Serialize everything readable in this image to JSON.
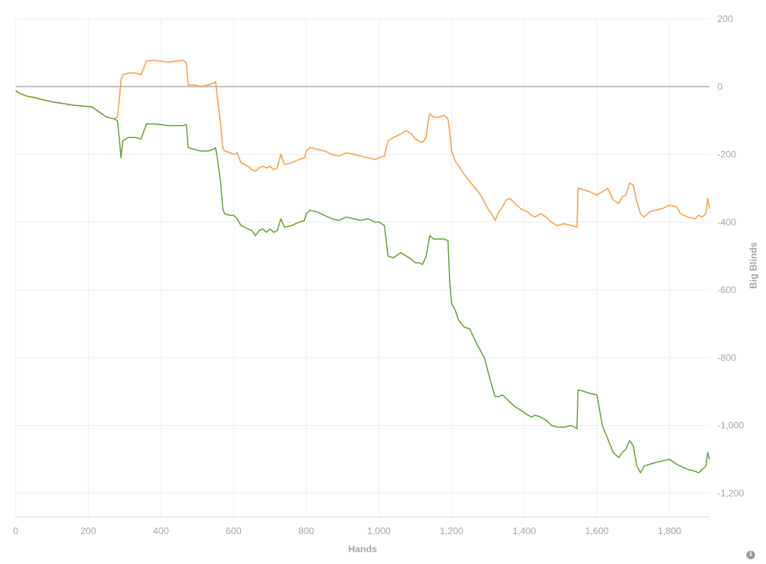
{
  "chart_data": {
    "type": "line",
    "xlabel": "Hands",
    "ylabel": "Big Blinds",
    "xlim": [
      0,
      1910
    ],
    "ylim": [
      -1270,
      200
    ],
    "x_ticks": [
      0,
      200,
      400,
      600,
      800,
      1000,
      1200,
      1400,
      1600,
      1800
    ],
    "y_ticks": [
      200,
      0,
      -200,
      -400,
      -600,
      -800,
      -1000,
      -1200
    ],
    "grid": true,
    "zero_line": true,
    "legend": "none",
    "series": [
      {
        "color": "#f5a04f",
        "points": [
          [
            0,
            -12
          ],
          [
            10,
            -20
          ],
          [
            30,
            -28
          ],
          [
            50,
            -32
          ],
          [
            80,
            -40
          ],
          [
            100,
            -45
          ],
          [
            130,
            -50
          ],
          [
            160,
            -55
          ],
          [
            190,
            -58
          ],
          [
            210,
            -60
          ],
          [
            230,
            -75
          ],
          [
            250,
            -90
          ],
          [
            270,
            -95
          ],
          [
            280,
            -90
          ],
          [
            285,
            -40
          ],
          [
            290,
            20
          ],
          [
            295,
            35
          ],
          [
            310,
            40
          ],
          [
            330,
            40
          ],
          [
            345,
            35
          ],
          [
            360,
            75
          ],
          [
            380,
            78
          ],
          [
            400,
            75
          ],
          [
            420,
            72
          ],
          [
            440,
            75
          ],
          [
            460,
            78
          ],
          [
            470,
            70
          ],
          [
            475,
            5
          ],
          [
            490,
            5
          ],
          [
            510,
            0
          ],
          [
            530,
            5
          ],
          [
            545,
            10
          ],
          [
            550,
            15
          ],
          [
            555,
            -30
          ],
          [
            565,
            -120
          ],
          [
            570,
            -180
          ],
          [
            575,
            -190
          ],
          [
            590,
            -195
          ],
          [
            600,
            -200
          ],
          [
            610,
            -195
          ],
          [
            620,
            -225
          ],
          [
            640,
            -235
          ],
          [
            650,
            -245
          ],
          [
            660,
            -250
          ],
          [
            670,
            -240
          ],
          [
            680,
            -235
          ],
          [
            690,
            -240
          ],
          [
            700,
            -235
          ],
          [
            710,
            -245
          ],
          [
            720,
            -240
          ],
          [
            730,
            -200
          ],
          [
            740,
            -230
          ],
          [
            760,
            -225
          ],
          [
            780,
            -215
          ],
          [
            795,
            -210
          ],
          [
            800,
            -190
          ],
          [
            810,
            -180
          ],
          [
            830,
            -185
          ],
          [
            850,
            -190
          ],
          [
            870,
            -200
          ],
          [
            890,
            -205
          ],
          [
            910,
            -195
          ],
          [
            930,
            -200
          ],
          [
            950,
            -205
          ],
          [
            970,
            -210
          ],
          [
            990,
            -215
          ],
          [
            1000,
            -210
          ],
          [
            1015,
            -205
          ],
          [
            1025,
            -160
          ],
          [
            1040,
            -150
          ],
          [
            1060,
            -140
          ],
          [
            1075,
            -130
          ],
          [
            1090,
            -140
          ],
          [
            1100,
            -155
          ],
          [
            1110,
            -160
          ],
          [
            1120,
            -165
          ],
          [
            1130,
            -150
          ],
          [
            1135,
            -105
          ],
          [
            1140,
            -80
          ],
          [
            1150,
            -90
          ],
          [
            1165,
            -90
          ],
          [
            1180,
            -85
          ],
          [
            1190,
            -95
          ],
          [
            1195,
            -135
          ],
          [
            1200,
            -190
          ],
          [
            1210,
            -220
          ],
          [
            1220,
            -235
          ],
          [
            1235,
            -260
          ],
          [
            1250,
            -280
          ],
          [
            1265,
            -300
          ],
          [
            1280,
            -320
          ],
          [
            1290,
            -340
          ],
          [
            1300,
            -360
          ],
          [
            1310,
            -375
          ],
          [
            1320,
            -395
          ],
          [
            1330,
            -370
          ],
          [
            1340,
            -355
          ],
          [
            1350,
            -335
          ],
          [
            1360,
            -330
          ],
          [
            1375,
            -345
          ],
          [
            1390,
            -360
          ],
          [
            1410,
            -370
          ],
          [
            1420,
            -380
          ],
          [
            1430,
            -385
          ],
          [
            1445,
            -375
          ],
          [
            1460,
            -385
          ],
          [
            1475,
            -400
          ],
          [
            1490,
            -410
          ],
          [
            1510,
            -405
          ],
          [
            1530,
            -410
          ],
          [
            1545,
            -415
          ],
          [
            1548,
            -300
          ],
          [
            1565,
            -305
          ],
          [
            1580,
            -310
          ],
          [
            1600,
            -320
          ],
          [
            1615,
            -310
          ],
          [
            1630,
            -300
          ],
          [
            1645,
            -335
          ],
          [
            1660,
            -345
          ],
          [
            1670,
            -325
          ],
          [
            1680,
            -320
          ],
          [
            1690,
            -285
          ],
          [
            1700,
            -290
          ],
          [
            1710,
            -340
          ],
          [
            1720,
            -375
          ],
          [
            1730,
            -385
          ],
          [
            1745,
            -370
          ],
          [
            1760,
            -365
          ],
          [
            1780,
            -360
          ],
          [
            1800,
            -350
          ],
          [
            1820,
            -355
          ],
          [
            1830,
            -375
          ],
          [
            1850,
            -385
          ],
          [
            1870,
            -390
          ],
          [
            1880,
            -380
          ],
          [
            1890,
            -385
          ],
          [
            1900,
            -375
          ],
          [
            1905,
            -330
          ],
          [
            1910,
            -360
          ]
        ]
      },
      {
        "color": "#6aa33a",
        "points": [
          [
            0,
            -12
          ],
          [
            10,
            -20
          ],
          [
            30,
            -28
          ],
          [
            50,
            -32
          ],
          [
            80,
            -40
          ],
          [
            100,
            -45
          ],
          [
            130,
            -50
          ],
          [
            160,
            -55
          ],
          [
            190,
            -58
          ],
          [
            210,
            -60
          ],
          [
            230,
            -75
          ],
          [
            250,
            -90
          ],
          [
            270,
            -95
          ],
          [
            280,
            -100
          ],
          [
            285,
            -150
          ],
          [
            290,
            -210
          ],
          [
            295,
            -160
          ],
          [
            310,
            -150
          ],
          [
            330,
            -150
          ],
          [
            345,
            -155
          ],
          [
            360,
            -110
          ],
          [
            380,
            -110
          ],
          [
            400,
            -112
          ],
          [
            420,
            -115
          ],
          [
            440,
            -115
          ],
          [
            460,
            -115
          ],
          [
            470,
            -112
          ],
          [
            475,
            -180
          ],
          [
            490,
            -185
          ],
          [
            510,
            -190
          ],
          [
            530,
            -190
          ],
          [
            545,
            -185
          ],
          [
            550,
            -180
          ],
          [
            555,
            -210
          ],
          [
            565,
            -290
          ],
          [
            570,
            -360
          ],
          [
            575,
            -375
          ],
          [
            590,
            -380
          ],
          [
            600,
            -380
          ],
          [
            610,
            -390
          ],
          [
            620,
            -410
          ],
          [
            640,
            -420
          ],
          [
            650,
            -425
          ],
          [
            660,
            -440
          ],
          [
            670,
            -425
          ],
          [
            680,
            -420
          ],
          [
            690,
            -430
          ],
          [
            700,
            -420
          ],
          [
            710,
            -430
          ],
          [
            720,
            -425
          ],
          [
            730,
            -390
          ],
          [
            740,
            -415
          ],
          [
            760,
            -410
          ],
          [
            780,
            -400
          ],
          [
            795,
            -395
          ],
          [
            800,
            -375
          ],
          [
            810,
            -365
          ],
          [
            830,
            -370
          ],
          [
            850,
            -380
          ],
          [
            870,
            -390
          ],
          [
            890,
            -395
          ],
          [
            910,
            -385
          ],
          [
            930,
            -390
          ],
          [
            950,
            -395
          ],
          [
            970,
            -390
          ],
          [
            990,
            -400
          ],
          [
            1000,
            -400
          ],
          [
            1015,
            -410
          ],
          [
            1025,
            -500
          ],
          [
            1040,
            -505
          ],
          [
            1060,
            -490
          ],
          [
            1075,
            -500
          ],
          [
            1090,
            -510
          ],
          [
            1100,
            -520
          ],
          [
            1110,
            -520
          ],
          [
            1120,
            -525
          ],
          [
            1130,
            -500
          ],
          [
            1135,
            -470
          ],
          [
            1140,
            -440
          ],
          [
            1150,
            -450
          ],
          [
            1165,
            -450
          ],
          [
            1180,
            -450
          ],
          [
            1190,
            -455
          ],
          [
            1195,
            -580
          ],
          [
            1200,
            -640
          ],
          [
            1210,
            -660
          ],
          [
            1220,
            -690
          ],
          [
            1235,
            -710
          ],
          [
            1250,
            -715
          ],
          [
            1265,
            -750
          ],
          [
            1280,
            -780
          ],
          [
            1290,
            -800
          ],
          [
            1300,
            -840
          ],
          [
            1310,
            -880
          ],
          [
            1320,
            -915
          ],
          [
            1330,
            -915
          ],
          [
            1340,
            -910
          ],
          [
            1350,
            -920
          ],
          [
            1360,
            -930
          ],
          [
            1375,
            -945
          ],
          [
            1390,
            -955
          ],
          [
            1410,
            -970
          ],
          [
            1420,
            -975
          ],
          [
            1430,
            -970
          ],
          [
            1445,
            -975
          ],
          [
            1460,
            -985
          ],
          [
            1475,
            -1000
          ],
          [
            1490,
            -1005
          ],
          [
            1510,
            -1005
          ],
          [
            1530,
            -1000
          ],
          [
            1545,
            -1010
          ],
          [
            1548,
            -895
          ],
          [
            1565,
            -900
          ],
          [
            1580,
            -905
          ],
          [
            1600,
            -910
          ],
          [
            1615,
            -1000
          ],
          [
            1630,
            -1040
          ],
          [
            1645,
            -1080
          ],
          [
            1660,
            -1095
          ],
          [
            1670,
            -1080
          ],
          [
            1680,
            -1070
          ],
          [
            1690,
            -1045
          ],
          [
            1700,
            -1060
          ],
          [
            1710,
            -1120
          ],
          [
            1720,
            -1140
          ],
          [
            1730,
            -1120
          ],
          [
            1745,
            -1115
          ],
          [
            1760,
            -1110
          ],
          [
            1780,
            -1105
          ],
          [
            1800,
            -1100
          ],
          [
            1820,
            -1115
          ],
          [
            1830,
            -1120
          ],
          [
            1850,
            -1130
          ],
          [
            1870,
            -1135
          ],
          [
            1880,
            -1140
          ],
          [
            1890,
            -1130
          ],
          [
            1900,
            -1120
          ],
          [
            1905,
            -1080
          ],
          [
            1910,
            -1100
          ]
        ]
      }
    ]
  }
}
